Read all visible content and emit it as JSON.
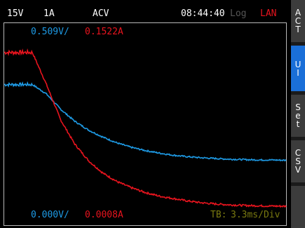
{
  "status_bar": {
    "voltage_range": "15V",
    "current_range": "1A",
    "mode": "ACV",
    "time": "08:44:40",
    "log": "Log",
    "lan": "LAN"
  },
  "scale": {
    "voltage_top": "0.509V/",
    "current_top": "0.1522A",
    "voltage_bottom": "0.000V/",
    "current_bottom": "0.0008A",
    "timebase_label": "TB:",
    "timebase_value": "3.3ms/Div"
  },
  "softkeys": [
    {
      "label": "ACT",
      "chars": [
        "A",
        "C",
        "T"
      ],
      "active": false
    },
    {
      "label": "UI",
      "chars": [
        "U",
        "I"
      ],
      "active": true
    },
    {
      "label": "Set",
      "chars": [
        "S",
        "e",
        "t"
      ],
      "active": false
    },
    {
      "label": "CSV",
      "chars": [
        "C",
        "S",
        "V"
      ],
      "active": false
    }
  ],
  "colors": {
    "voltage": "#1e9be6",
    "current": "#e8141e",
    "lan": "#e8141e",
    "log": "#555555",
    "timebase": "#7a7a10",
    "softkey_active": "#1a6fd8"
  },
  "chart_data": {
    "type": "line",
    "x_unit": "ms",
    "x_range": [
      0,
      40
    ],
    "series": [
      {
        "name": "U",
        "unit": "V",
        "color": "#1e9be6",
        "y_range": [
          0,
          0.509
        ],
        "x": [
          0,
          4,
          6,
          8,
          10,
          12,
          14,
          16,
          18,
          20,
          22,
          24,
          26,
          28,
          30,
          32,
          34,
          36,
          38,
          40
        ],
        "values": [
          0.388,
          0.388,
          0.362,
          0.32,
          0.287,
          0.262,
          0.243,
          0.227,
          0.215,
          0.206,
          0.199,
          0.193,
          0.189,
          0.186,
          0.184,
          0.182,
          0.181,
          0.18,
          0.18,
          0.179
        ]
      },
      {
        "name": "I",
        "unit": "A",
        "color": "#e8141e",
        "y_range": [
          0,
          0.1522
        ],
        "x": [
          0,
          4,
          6,
          8,
          10,
          12,
          14,
          16,
          18,
          20,
          22,
          24,
          26,
          28,
          30,
          32,
          34,
          36,
          38,
          40
        ],
        "values": [
          0.1425,
          0.1425,
          0.116,
          0.087,
          0.067,
          0.053,
          0.043,
          0.036,
          0.031,
          0.027,
          0.024,
          0.022,
          0.02,
          0.0185,
          0.0175,
          0.0168,
          0.0163,
          0.016,
          0.0158,
          0.0156
        ]
      }
    ]
  }
}
